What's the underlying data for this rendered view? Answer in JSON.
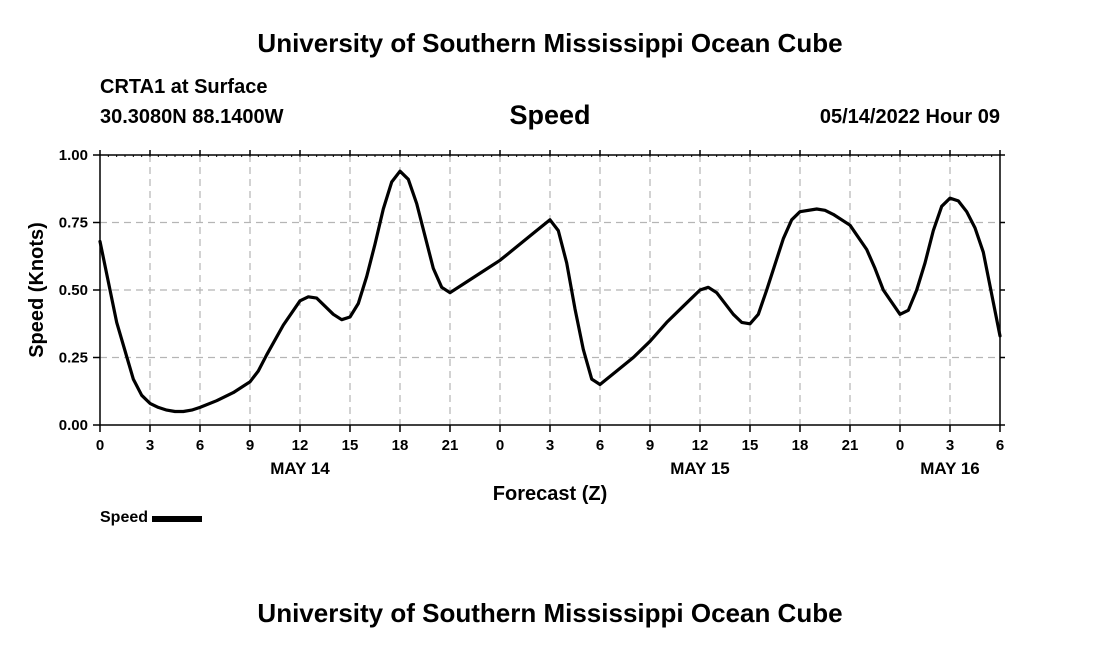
{
  "header": {
    "org_title": "University of Southern Mississippi Ocean Cube",
    "station": "CRTA1 at Surface",
    "coords": "30.3080N  88.1400W",
    "variable": "Speed",
    "datetime": "05/14/2022 Hour 09"
  },
  "footer": {
    "org_title": "University of Southern Mississippi Ocean Cube"
  },
  "legend": {
    "label": "Speed"
  },
  "chart_data": {
    "type": "line",
    "title": "Speed",
    "xlabel": "Forecast (Z)",
    "ylabel": "Speed (Knots)",
    "ylim": [
      0,
      1
    ],
    "xlim": [
      0,
      54
    ],
    "x_unit": "hours from 00Z May 14",
    "yticks": [
      "0.00",
      "0.25",
      "0.50",
      "0.75",
      "1.00"
    ],
    "xticks": [
      "0",
      "3",
      "6",
      "9",
      "12",
      "15",
      "18",
      "21",
      "0",
      "3",
      "6",
      "9",
      "12",
      "15",
      "18",
      "21",
      "0",
      "3",
      "6"
    ],
    "date_labels": [
      {
        "label": "MAY 14",
        "x": 12
      },
      {
        "label": "MAY 15",
        "x": 36
      },
      {
        "label": "MAY 16",
        "x": 51
      }
    ],
    "grid": true,
    "line_color": "#000000",
    "series": [
      {
        "name": "Speed",
        "x": [
          0,
          1,
          2,
          2.5,
          3,
          3.5,
          4,
          4.5,
          5,
          5.5,
          6,
          7,
          8,
          9,
          9.5,
          10,
          11,
          12,
          12.5,
          13,
          14,
          14.5,
          15,
          15.5,
          16,
          16.5,
          17,
          17.5,
          18,
          18.5,
          19,
          20,
          20.5,
          21,
          22,
          23,
          24,
          25,
          26,
          27,
          27.5,
          28,
          28.5,
          29,
          29.5,
          30,
          31,
          32,
          33,
          34,
          35,
          36,
          36.5,
          37,
          38,
          38.5,
          39,
          39.5,
          40,
          41,
          41.5,
          42,
          43,
          43.5,
          44,
          45,
          46,
          46.5,
          47,
          48,
          48.5,
          49,
          49.5,
          50,
          50.5,
          51,
          51.5,
          52,
          52.5,
          53,
          54
        ],
        "values": [
          0.68,
          0.38,
          0.17,
          0.11,
          0.08,
          0.065,
          0.055,
          0.05,
          0.05,
          0.055,
          0.065,
          0.09,
          0.12,
          0.16,
          0.2,
          0.26,
          0.37,
          0.46,
          0.475,
          0.47,
          0.41,
          0.39,
          0.4,
          0.45,
          0.55,
          0.67,
          0.8,
          0.9,
          0.94,
          0.91,
          0.82,
          0.58,
          0.51,
          0.49,
          0.53,
          0.57,
          0.61,
          0.66,
          0.71,
          0.76,
          0.72,
          0.6,
          0.43,
          0.28,
          0.17,
          0.15,
          0.2,
          0.25,
          0.31,
          0.38,
          0.44,
          0.5,
          0.51,
          0.49,
          0.41,
          0.38,
          0.375,
          0.41,
          0.5,
          0.69,
          0.76,
          0.79,
          0.8,
          0.795,
          0.78,
          0.74,
          0.65,
          0.58,
          0.5,
          0.41,
          0.425,
          0.5,
          0.6,
          0.72,
          0.81,
          0.84,
          0.83,
          0.79,
          0.73,
          0.64,
          0.33
        ]
      }
    ]
  }
}
